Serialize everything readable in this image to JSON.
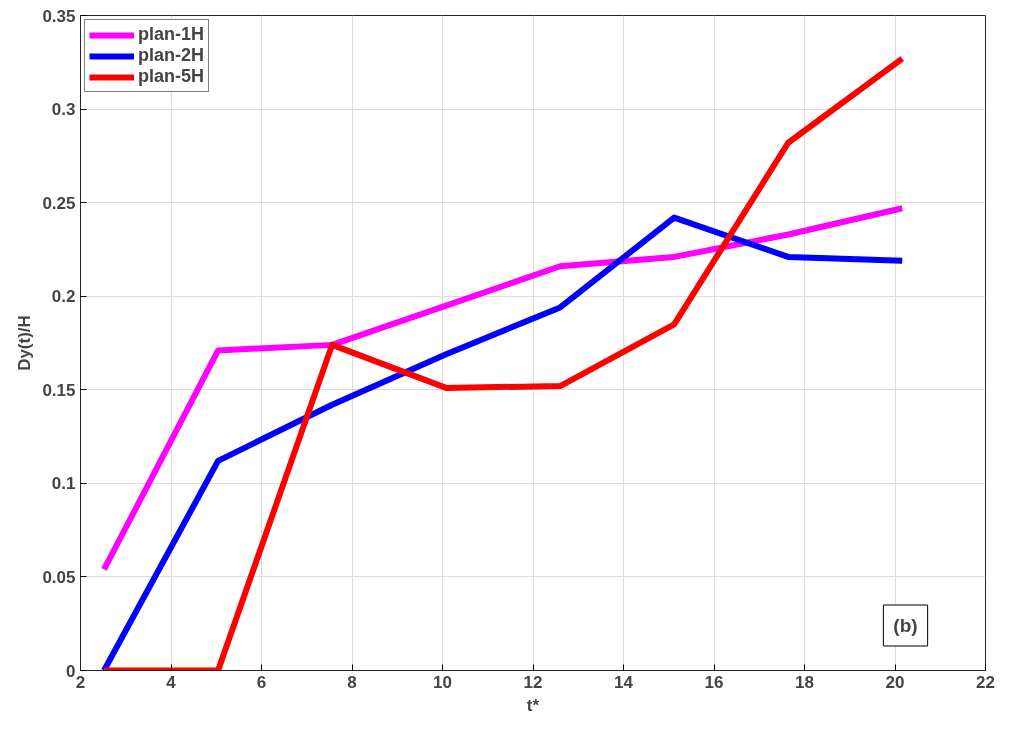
{
  "chart_data": {
    "type": "line",
    "xlabel": "t*",
    "ylabel": "Dy(t)/H",
    "x": [
      2.52,
      5.04,
      7.56,
      10.08,
      12.6,
      15.12,
      17.64,
      20.16
    ],
    "series": [
      {
        "name": "plan-1H",
        "color": "#ff00ff",
        "values": [
          0.054,
          0.171,
          0.174,
          0.195,
          0.216,
          0.221,
          0.233,
          0.247
        ]
      },
      {
        "name": "plan-2H",
        "color": "#0000ff",
        "values": [
          0.0,
          0.112,
          0.142,
          0.169,
          0.194,
          0.242,
          0.221,
          0.219
        ]
      },
      {
        "name": "plan-5H",
        "color": "#ff0000",
        "values": [
          0.0,
          0.0,
          0.174,
          0.151,
          0.152,
          0.185,
          0.282,
          0.327
        ]
      }
    ],
    "xlim": [
      2,
      22
    ],
    "xticks": [
      2,
      4,
      6,
      8,
      10,
      12,
      14,
      16,
      18,
      20,
      22
    ],
    "ylim": [
      0,
      0.35
    ],
    "yticks": [
      0,
      0.05,
      0.1,
      0.15,
      0.2,
      0.25,
      0.3,
      0.35
    ],
    "annotations": [
      "(b)"
    ],
    "grid": true,
    "legend": "top left",
    "line_style": "solid",
    "marker": "none"
  }
}
